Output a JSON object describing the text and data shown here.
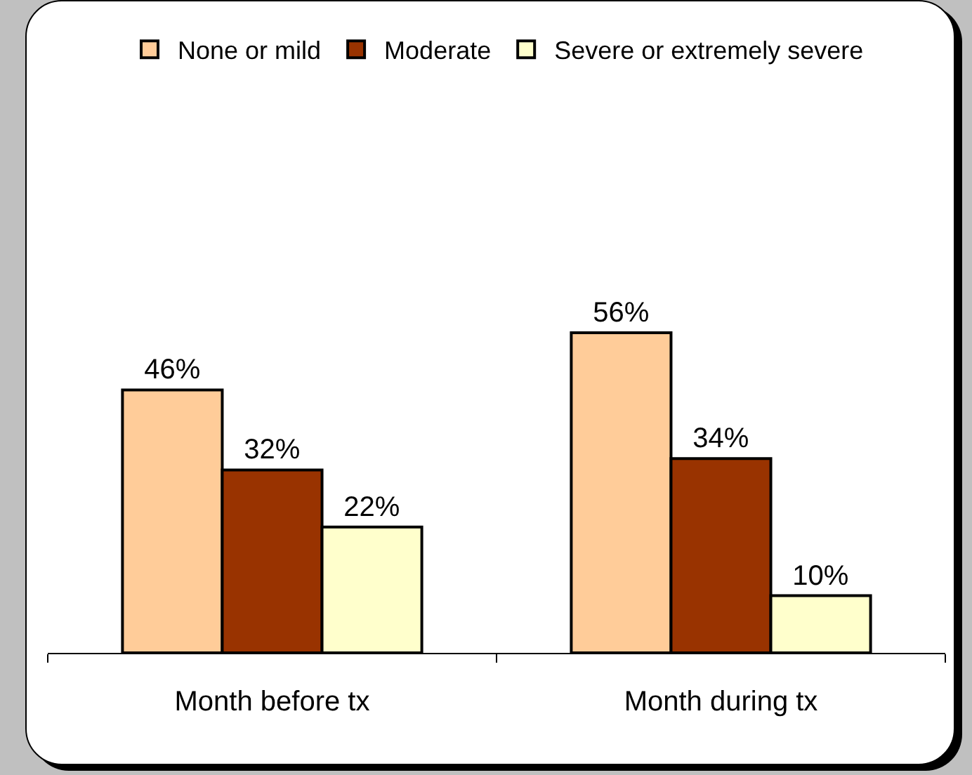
{
  "chart_data": {
    "type": "bar",
    "categories": [
      "Month before tx",
      "Month during tx"
    ],
    "series": [
      {
        "name": "None or mild",
        "color": "#ffcc99",
        "values": [
          46,
          56
        ],
        "value_labels": [
          "46%",
          "56%"
        ]
      },
      {
        "name": "Moderate",
        "color": "#993300",
        "values": [
          32,
          34
        ],
        "value_labels": [
          "32%",
          "34%"
        ]
      },
      {
        "name": "Severe or extremely severe",
        "color": "#ffffcc",
        "values": [
          22,
          10
        ],
        "value_labels": [
          "22%",
          "10%"
        ]
      }
    ],
    "legend": "top",
    "grid": false,
    "tick_labels": "x"
  }
}
